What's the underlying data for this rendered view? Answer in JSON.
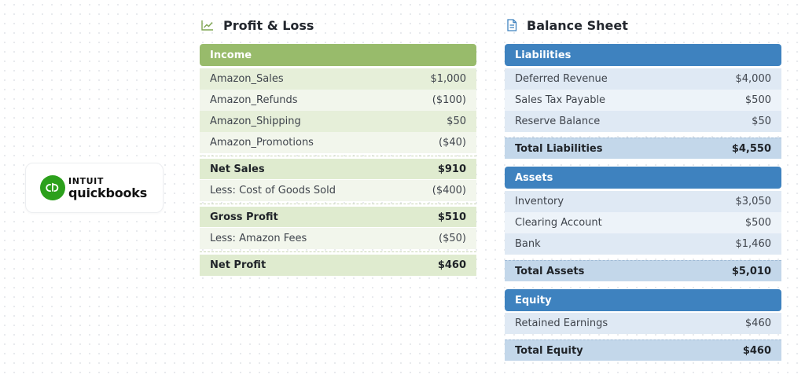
{
  "logo": {
    "brand_top": "INTUIT",
    "brand_bottom": "quickbooks",
    "icon": "quickbooks-logo-icon",
    "color": "#2ca01c"
  },
  "profit_loss": {
    "title": "Profit & Loss",
    "icon": "line-chart-icon",
    "accent": "#98bb6b",
    "income_header": "Income",
    "income_rows": [
      {
        "label": "Amazon_Sales",
        "value": "$1,000"
      },
      {
        "label": "Amazon_Refunds",
        "value": "($100)"
      },
      {
        "label": "Amazon_Shipping",
        "value": "$50"
      },
      {
        "label": "Amazon_Promotions",
        "value": "($40)"
      }
    ],
    "net_sales": {
      "label": "Net Sales",
      "value": "$910"
    },
    "cogs": {
      "label": "Less: Cost of Goods Sold",
      "value": "($400)"
    },
    "gross_profit": {
      "label": "Gross Profit",
      "value": "$510"
    },
    "fees": {
      "label": "Less: Amazon Fees",
      "value": "($50)"
    },
    "net_profit": {
      "label": "Net Profit",
      "value": "$460"
    }
  },
  "balance_sheet": {
    "title": "Balance Sheet",
    "icon": "document-icon",
    "accent": "#3e82bf",
    "liabilities": {
      "header": "Liabilities",
      "rows": [
        {
          "label": "Deferred Revenue",
          "value": "$4,000"
        },
        {
          "label": "Sales Tax Payable",
          "value": "$500"
        },
        {
          "label": "Reserve Balance",
          "value": "$50"
        }
      ],
      "total": {
        "label": "Total Liabilities",
        "value": "$4,550"
      }
    },
    "assets": {
      "header": "Assets",
      "rows": [
        {
          "label": "Inventory",
          "value": "$3,050"
        },
        {
          "label": "Clearing Account",
          "value": "$500"
        },
        {
          "label": "Bank",
          "value": "$1,460"
        }
      ],
      "total": {
        "label": "Total Assets",
        "value": "$5,010"
      }
    },
    "equity": {
      "header": "Equity",
      "rows": [
        {
          "label": "Retained Earnings",
          "value": "$460"
        }
      ],
      "total": {
        "label": "Total Equity",
        "value": "$460"
      }
    }
  }
}
